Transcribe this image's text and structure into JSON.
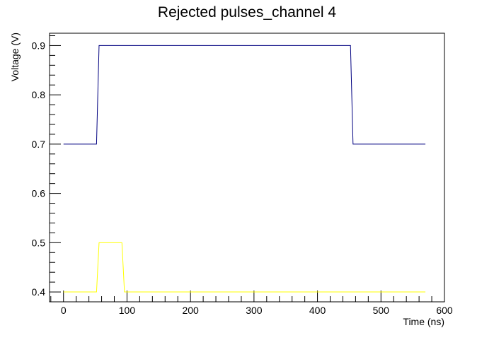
{
  "chart_data": {
    "type": "line",
    "title": "Rejected pulses_channel 4",
    "xlabel": "Time (ns)",
    "ylabel": "Voltage (V)",
    "xlim": [
      -22,
      600
    ],
    "ylim": [
      0.38,
      0.925
    ],
    "xticks": [
      0,
      100,
      200,
      300,
      400,
      500,
      600
    ],
    "yticks": [
      0.4,
      0.5,
      0.6,
      0.7,
      0.8,
      0.9
    ],
    "grid": false,
    "legend": "none",
    "series": [
      {
        "color": "#000080",
        "x": [
          0,
          52,
          56,
          452,
          456,
          570
        ],
        "y": [
          0.7,
          0.7,
          0.9,
          0.9,
          0.7,
          0.7
        ]
      },
      {
        "color": "#ffff00",
        "x": [
          0,
          52,
          56,
          92,
          96,
          570
        ],
        "y": [
          0.4,
          0.4,
          0.5,
          0.5,
          0.4,
          0.4
        ]
      }
    ]
  }
}
